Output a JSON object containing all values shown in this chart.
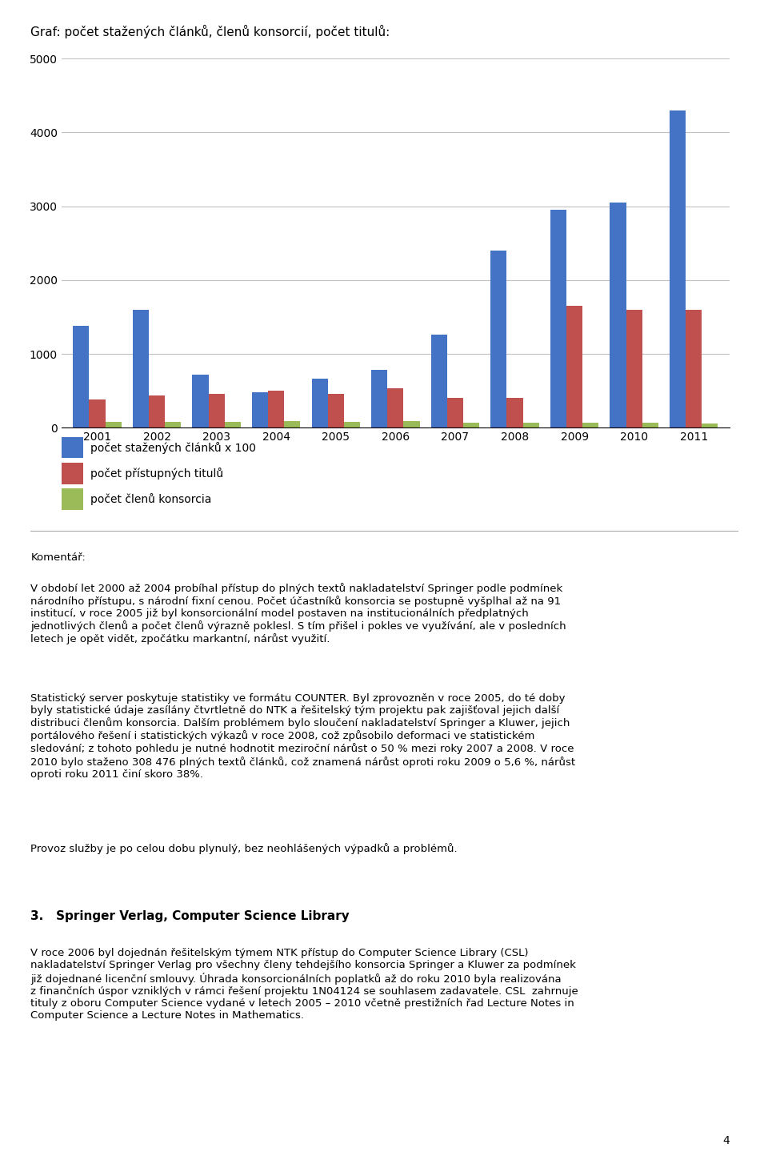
{
  "title": "Graf: počet stažených článků, členů konsorcií, počet titulů:",
  "years": [
    2001,
    2002,
    2003,
    2004,
    2005,
    2006,
    2007,
    2008,
    2009,
    2010,
    2011
  ],
  "blue": [
    1380,
    1600,
    720,
    480,
    670,
    780,
    1260,
    2400,
    2950,
    3050,
    4300
  ],
  "red": [
    380,
    440,
    460,
    500,
    460,
    540,
    400,
    400,
    1650,
    1600,
    1600
  ],
  "green": [
    75,
    85,
    75,
    90,
    80,
    90,
    70,
    70,
    65,
    65,
    60
  ],
  "blue_color": "#4472C4",
  "red_color": "#C0504D",
  "green_color": "#9BBB59",
  "ylim": [
    0,
    5000
  ],
  "yticks": [
    0,
    1000,
    2000,
    3000,
    4000,
    5000
  ],
  "legend_labels": [
    "počet stažených článků x 100",
    "počet přístupných titulů",
    "počet členů konsorcia"
  ],
  "background_color": "#FFFFFF",
  "grid_color": "#C0C0C0",
  "title_fontsize": 11,
  "axis_fontsize": 10,
  "legend_fontsize": 10,
  "body_fontsize": 9.5,
  "heading_fontsize": 11
}
